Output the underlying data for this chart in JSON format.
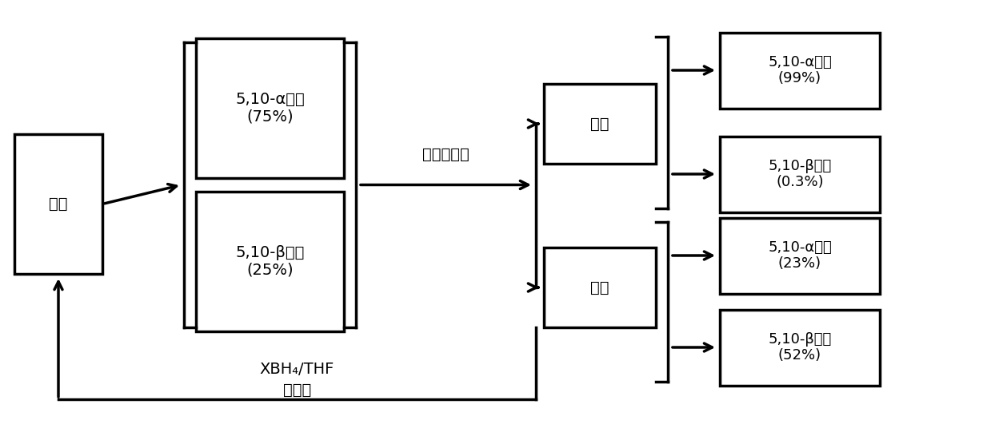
{
  "background_color": "#ffffff",
  "raw_material_label": "原料",
  "mix_top_label": "5,10-α环氧\n(75%)",
  "mix_bot_label": "5,10-β环氧\n(25%)",
  "filter_cake_label": "滤饼",
  "filtrate_label": "滤液",
  "result_labels": [
    "5,10-α环氧\n(99%)",
    "5,10-β环氧\n(0.3%)",
    "5,10-α环氧\n(23%)",
    "5,10-β环氧\n(52%)"
  ],
  "arrow_label_hexane": "正己烷打浆",
  "label_xbh4": "XBH₄/THF",
  "label_weak_acid": "弱酸性",
  "font_size": 14,
  "lw": 2.5
}
